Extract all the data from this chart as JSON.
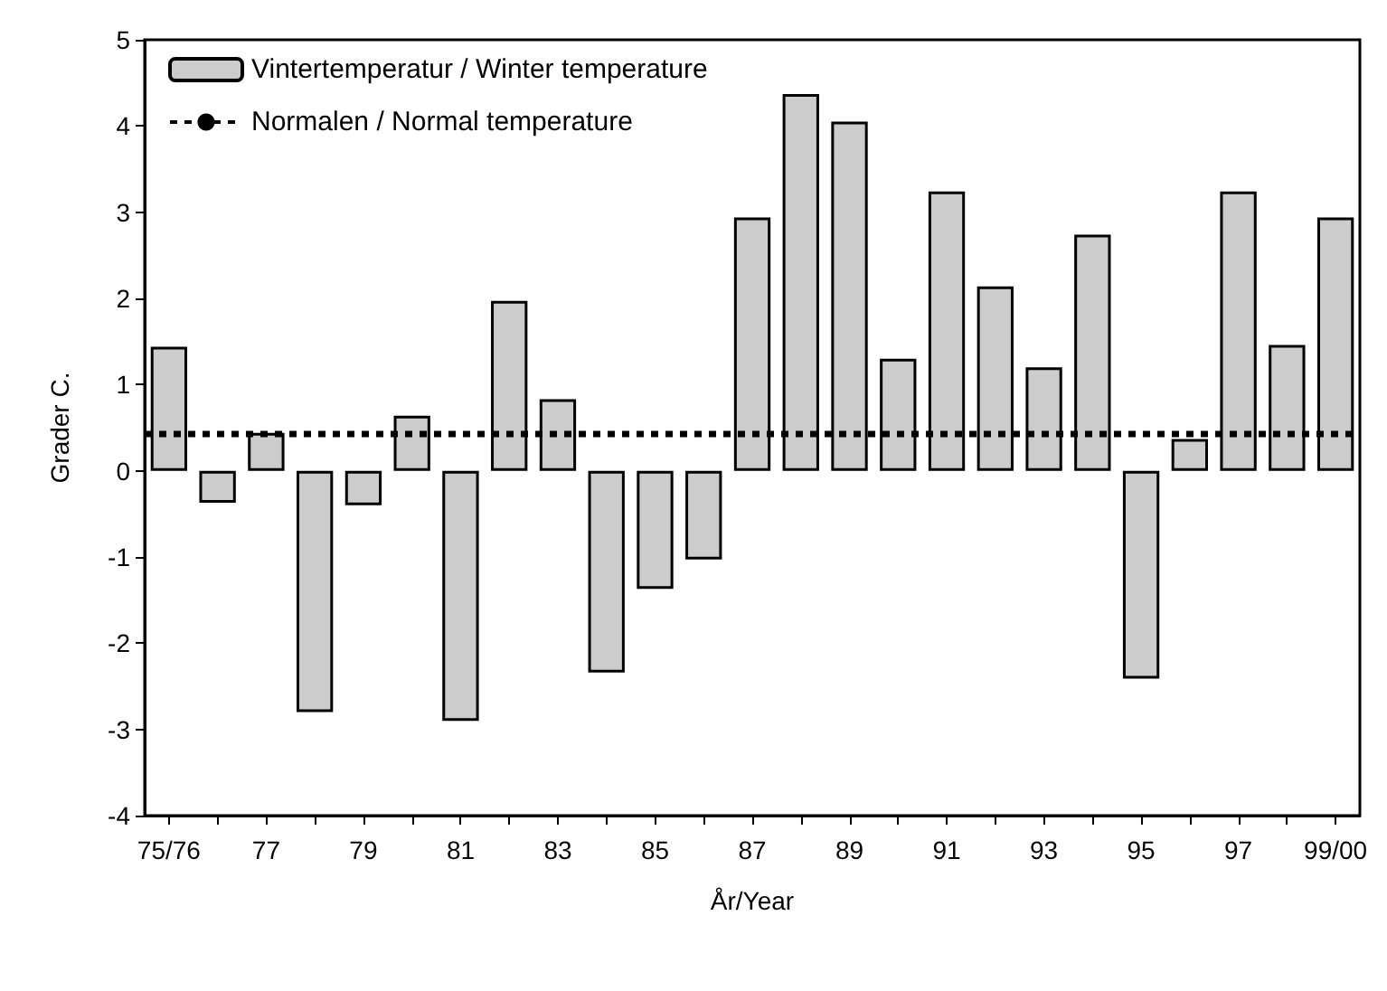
{
  "chart_data": {
    "type": "bar",
    "xlabel": "År/Year",
    "ylabel": "Grader C.",
    "categories": [
      "75/76",
      null,
      "77",
      null,
      "79",
      null,
      "81",
      null,
      "83",
      null,
      "85",
      null,
      "87",
      null,
      "89",
      null,
      "91",
      null,
      "93",
      null,
      "95",
      null,
      "97",
      null,
      "99/00"
    ],
    "series": [
      {
        "name": "Vintertemperatur / Winter temperature",
        "color": "#cccccc",
        "values": [
          1.44,
          -0.37,
          0.44,
          -2.8,
          -0.4,
          0.64,
          -2.9,
          1.97,
          0.83,
          -2.34,
          -1.37,
          -1.03,
          2.94,
          4.37,
          4.05,
          1.3,
          3.24,
          2.14,
          1.2,
          2.74,
          -2.41,
          0.37,
          3.24,
          1.46,
          2.94
        ]
      }
    ],
    "ylim": [
      -4,
      5
    ],
    "yticks": [
      -4,
      -3,
      -2,
      -1,
      0,
      1,
      2,
      3,
      4,
      5
    ],
    "ref_lines": [
      {
        "axis": "y",
        "value": 0.44,
        "label": "Normalen / Normal temperature",
        "color": "#000000",
        "line_style": "dotted"
      }
    ],
    "grid": false,
    "legend": "top left"
  }
}
